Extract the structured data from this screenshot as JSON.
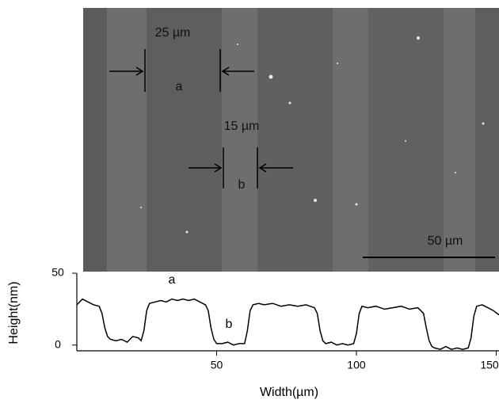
{
  "sem_image": {
    "labels": [
      "25 µm",
      "a",
      "15 µm",
      "b"
    ],
    "scale_bar": "50 µm"
  },
  "chart_data": {
    "type": "line",
    "xlabel": "Width(µm)",
    "ylabel": "Height(nm)",
    "xlim": [
      0,
      151
    ],
    "xticks": [
      50,
      100,
      150
    ],
    "ylim": [
      -4,
      50
    ],
    "yticks": [
      0,
      50
    ],
    "annotations": [
      "a",
      "b"
    ],
    "x": [
      0,
      2,
      4,
      6,
      8,
      9,
      10,
      11,
      12,
      14,
      16,
      18,
      20,
      22,
      23,
      24,
      25,
      26,
      28,
      30,
      32,
      34,
      36,
      38,
      40,
      42,
      44,
      46,
      47,
      48,
      49,
      50,
      52,
      54,
      56,
      58,
      60,
      61,
      62,
      63,
      65,
      67,
      70,
      73,
      76,
      79,
      82,
      85,
      86,
      87,
      88,
      89,
      91,
      93,
      95,
      97,
      99,
      100,
      101,
      102,
      104,
      107,
      110,
      113,
      116,
      119,
      122,
      124,
      125,
      126,
      127,
      128,
      130,
      132,
      134,
      136,
      138,
      140,
      141,
      142,
      143,
      145,
      147,
      149,
      151
    ],
    "series": [
      {
        "color": "#000000",
        "values": [
          28,
          32,
          30,
          28,
          27,
          22,
          12,
          6,
          4,
          3,
          4,
          2,
          6,
          5,
          3,
          10,
          24,
          29,
          30,
          31,
          30,
          32,
          31,
          32,
          31,
          32,
          30,
          28,
          24,
          12,
          4,
          1,
          1,
          2,
          0,
          1,
          1,
          10,
          24,
          28,
          29,
          28,
          29,
          27,
          28,
          27,
          28,
          26,
          22,
          10,
          3,
          1,
          2,
          0,
          1,
          0,
          1,
          8,
          22,
          27,
          26,
          27,
          25,
          26,
          27,
          25,
          26,
          22,
          12,
          3,
          -1,
          -2,
          -3,
          -1,
          -3,
          -2,
          -3,
          -2,
          5,
          20,
          27,
          28,
          26,
          24,
          21
        ]
      }
    ]
  }
}
